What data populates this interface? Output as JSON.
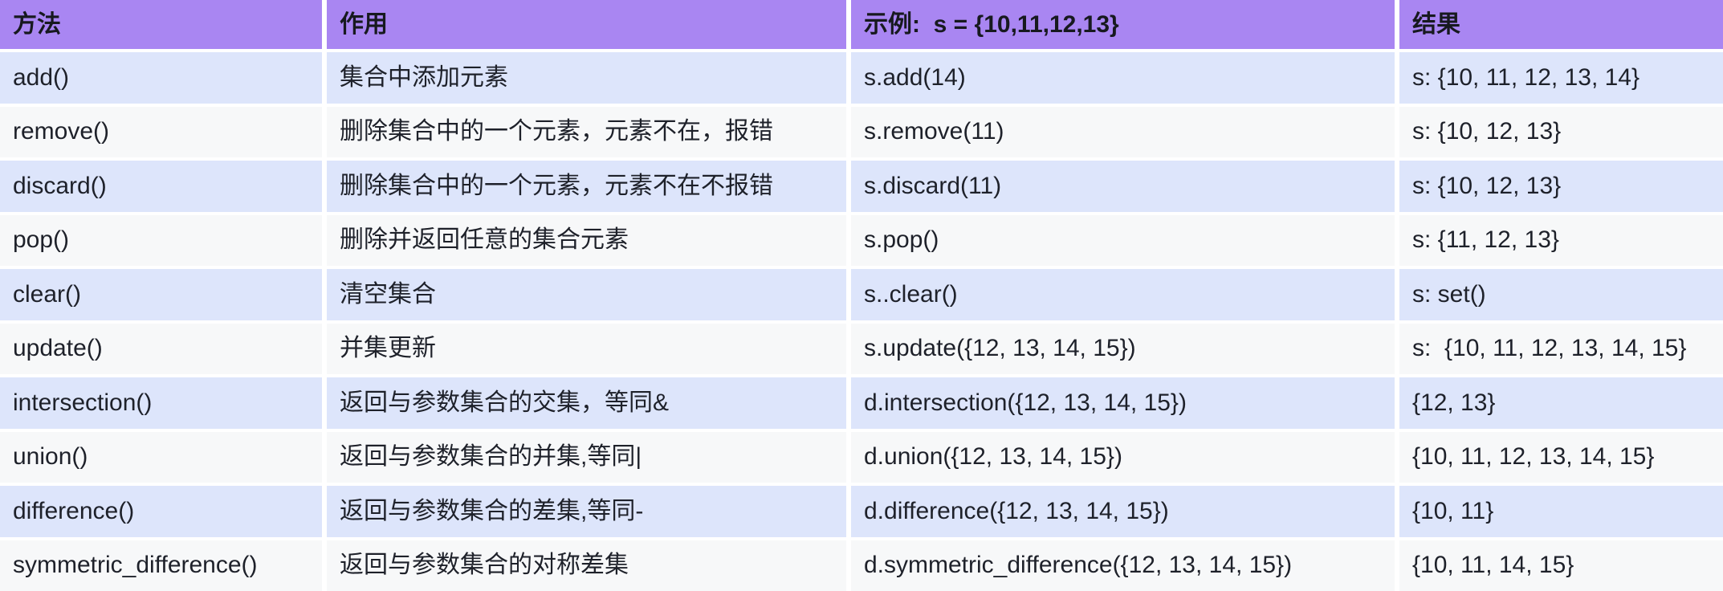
{
  "colors": {
    "header_bg": "#a986f2",
    "row_blue_bg": "#dde5fb",
    "row_gray_bg": "#f7f8f9",
    "gap_bg": "#ffffff",
    "text": "#1e212a"
  },
  "table": {
    "columns": [
      {
        "key": "method",
        "label": "方法"
      },
      {
        "key": "purpose",
        "label": "作用"
      },
      {
        "key": "example",
        "label": "示例:  s = {10,11,12,13}"
      },
      {
        "key": "result",
        "label": "结果"
      }
    ],
    "rows": [
      {
        "method": "add()",
        "purpose": "集合中添加元素",
        "example": "s.add(14)",
        "result": "s: {10, 11, 12, 13, 14}"
      },
      {
        "method": "remove()",
        "purpose": "删除集合中的一个元素，元素不在，报错",
        "example": "s.remove(11)",
        "result": "s: {10, 12, 13}"
      },
      {
        "method": "discard()",
        "purpose": "删除集合中的一个元素，元素不在不报错",
        "example": "s.discard(11)",
        "result": "s: {10, 12, 13}"
      },
      {
        "method": "pop()",
        "purpose": "删除并返回任意的集合元素",
        "example": "s.pop()",
        "result": "s: {11, 12, 13}"
      },
      {
        "method": "clear()",
        "purpose": "清空集合",
        "example": "s..clear()",
        "result": "s: set()"
      },
      {
        "method": "update()",
        "purpose": "并集更新",
        "example": "s.update({12, 13, 14, 15})",
        "result": "s:  {10, 11, 12, 13, 14, 15}"
      },
      {
        "method": "intersection()",
        "purpose": "返回与参数集合的交集，等同&",
        "example": "d.intersection({12, 13, 14, 15})",
        "result": "{12, 13}"
      },
      {
        "method": "union()",
        "purpose": "返回与参数集合的并集,等同|",
        "example": "d.union({12, 13, 14, 15})",
        "result": "{10, 11, 12, 13, 14, 15}"
      },
      {
        "method": "difference()",
        "purpose": "返回与参数集合的差集,等同-",
        "example": "d.difference({12, 13, 14, 15})",
        "result": "{10, 11}"
      },
      {
        "method": "symmetric_difference()",
        "purpose": "返回与参数集合的对称差集",
        "example": "d.symmetric_difference({12, 13, 14, 15})",
        "result": "{10, 11, 14, 15}"
      }
    ]
  }
}
